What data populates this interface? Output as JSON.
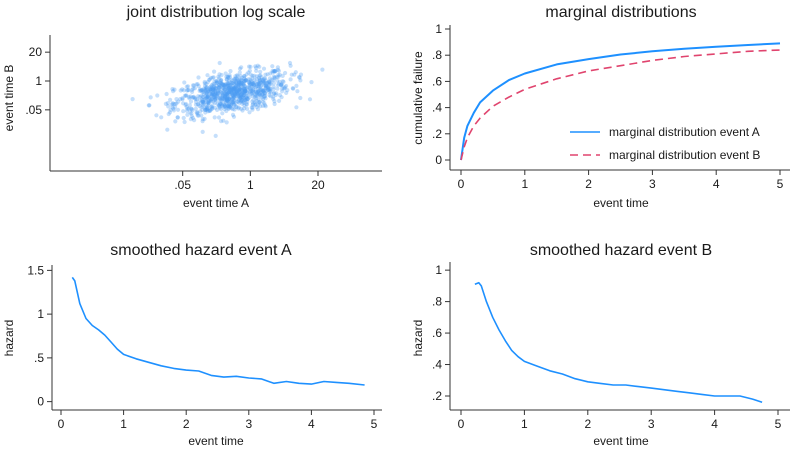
{
  "colors": {
    "series_a": "#1e90ff",
    "series_b": "#e0446e",
    "scatter": "#4a9cf2",
    "axis": "#333333"
  },
  "chart_data": [
    {
      "id": "joint",
      "type": "scatter",
      "title": "joint distribution log scale",
      "xlabel": "event time A",
      "ylabel": "event time B",
      "x_scale": "log",
      "y_scale": "log",
      "xlim": [
        0.0002,
        200
      ],
      "ylim": [
        0.0002,
        200
      ],
      "x_ticks": [
        {
          "v": 0.05,
          "label": ".05"
        },
        {
          "v": 1,
          "label": "1"
        },
        {
          "v": 20,
          "label": "20"
        }
      ],
      "y_ticks": [
        {
          "v": 0.05,
          "label": ".05"
        },
        {
          "v": 1,
          "label": "1"
        },
        {
          "v": 20,
          "label": "20"
        }
      ],
      "points": {
        "n": 900,
        "distribution": "bivariate log-normal",
        "mean_log10": [
          -0.35,
          -0.55
        ],
        "sd_log10": [
          0.55,
          0.5
        ],
        "correlation": 0.45
      },
      "legend": "none"
    },
    {
      "id": "marginal",
      "type": "line",
      "title": "marginal distributions",
      "xlabel": "event time",
      "ylabel": "cumulative failure",
      "xlim": [
        0,
        5
      ],
      "ylim": [
        0,
        1
      ],
      "x_ticks": [
        {
          "v": 0,
          "label": "0"
        },
        {
          "v": 1,
          "label": "1"
        },
        {
          "v": 2,
          "label": "2"
        },
        {
          "v": 3,
          "label": "3"
        },
        {
          "v": 4,
          "label": "4"
        },
        {
          "v": 5,
          "label": "5"
        }
      ],
      "y_ticks": [
        {
          "v": 0,
          "label": "0"
        },
        {
          "v": 0.2,
          "label": ".2"
        },
        {
          "v": 0.4,
          "label": ".4"
        },
        {
          "v": 0.6,
          "label": ".6"
        },
        {
          "v": 0.8,
          "label": ".8"
        },
        {
          "v": 1,
          "label": "1"
        }
      ],
      "legend_position": "bottom-right",
      "series": [
        {
          "name": "marginal distribution event A",
          "style": "solid",
          "x": [
            0,
            0.05,
            0.1,
            0.2,
            0.3,
            0.5,
            0.75,
            1,
            1.5,
            2,
            2.5,
            3,
            3.5,
            4,
            4.5,
            5
          ],
          "y": [
            0,
            0.17,
            0.26,
            0.36,
            0.44,
            0.53,
            0.61,
            0.66,
            0.73,
            0.77,
            0.805,
            0.83,
            0.85,
            0.865,
            0.878,
            0.89
          ]
        },
        {
          "name": "marginal distribution event B",
          "style": "dashed",
          "x": [
            0,
            0.05,
            0.1,
            0.2,
            0.3,
            0.5,
            0.75,
            1,
            1.5,
            2,
            2.5,
            3,
            3.5,
            4,
            4.5,
            5
          ],
          "y": [
            0,
            0.1,
            0.17,
            0.26,
            0.32,
            0.41,
            0.48,
            0.54,
            0.62,
            0.68,
            0.72,
            0.76,
            0.79,
            0.81,
            0.83,
            0.84
          ]
        }
      ]
    },
    {
      "id": "hazardA",
      "type": "line",
      "title": "smoothed hazard event A",
      "xlabel": "event time",
      "ylabel": "hazard",
      "xlim": [
        0,
        5
      ],
      "ylim": [
        -0.05,
        1.55
      ],
      "x_ticks": [
        {
          "v": 0,
          "label": "0"
        },
        {
          "v": 1,
          "label": "1"
        },
        {
          "v": 2,
          "label": "2"
        },
        {
          "v": 3,
          "label": "3"
        },
        {
          "v": 4,
          "label": "4"
        },
        {
          "v": 5,
          "label": "5"
        }
      ],
      "y_ticks": [
        {
          "v": 0,
          "label": "0"
        },
        {
          "v": 0.5,
          "label": ".5"
        },
        {
          "v": 1,
          "label": "1"
        },
        {
          "v": 1.5,
          "label": "1.5"
        }
      ],
      "legend": "none",
      "series": [
        {
          "name": "smoothed hazard event A",
          "x": [
            0.18,
            0.22,
            0.3,
            0.4,
            0.5,
            0.6,
            0.7,
            0.8,
            0.9,
            1.0,
            1.2,
            1.4,
            1.6,
            1.8,
            2.0,
            2.2,
            2.4,
            2.6,
            2.8,
            3.0,
            3.2,
            3.4,
            3.6,
            3.8,
            4.0,
            4.2,
            4.4,
            4.6,
            4.85
          ],
          "y": [
            1.42,
            1.38,
            1.12,
            0.95,
            0.87,
            0.82,
            0.76,
            0.68,
            0.6,
            0.54,
            0.49,
            0.45,
            0.41,
            0.38,
            0.36,
            0.35,
            0.3,
            0.28,
            0.29,
            0.27,
            0.26,
            0.21,
            0.23,
            0.21,
            0.2,
            0.23,
            0.22,
            0.21,
            0.19
          ]
        }
      ]
    },
    {
      "id": "hazardB",
      "type": "line",
      "title": "smoothed hazard event B",
      "xlabel": "event time",
      "ylabel": "hazard",
      "xlim": [
        0,
        5
      ],
      "ylim": [
        0.13,
        1.02
      ],
      "x_ticks": [
        {
          "v": 0,
          "label": "0"
        },
        {
          "v": 1,
          "label": "1"
        },
        {
          "v": 2,
          "label": "2"
        },
        {
          "v": 3,
          "label": "3"
        },
        {
          "v": 4,
          "label": "4"
        },
        {
          "v": 5,
          "label": "5"
        }
      ],
      "y_ticks": [
        {
          "v": 0.2,
          "label": ".2"
        },
        {
          "v": 0.4,
          "label": ".4"
        },
        {
          "v": 0.6,
          "label": ".6"
        },
        {
          "v": 0.8,
          "label": ".8"
        },
        {
          "v": 1,
          "label": "1"
        }
      ],
      "legend": "none",
      "series": [
        {
          "name": "smoothed hazard event B",
          "x": [
            0.22,
            0.28,
            0.32,
            0.4,
            0.5,
            0.6,
            0.7,
            0.8,
            0.9,
            1.0,
            1.2,
            1.4,
            1.6,
            1.8,
            2.0,
            2.2,
            2.4,
            2.6,
            2.8,
            3.0,
            3.2,
            3.4,
            3.6,
            3.8,
            4.0,
            4.2,
            4.4,
            4.6,
            4.75
          ],
          "y": [
            0.91,
            0.92,
            0.9,
            0.8,
            0.7,
            0.62,
            0.55,
            0.49,
            0.45,
            0.42,
            0.39,
            0.36,
            0.34,
            0.31,
            0.29,
            0.28,
            0.27,
            0.27,
            0.26,
            0.25,
            0.24,
            0.23,
            0.22,
            0.21,
            0.2,
            0.2,
            0.2,
            0.18,
            0.16
          ]
        }
      ]
    }
  ]
}
